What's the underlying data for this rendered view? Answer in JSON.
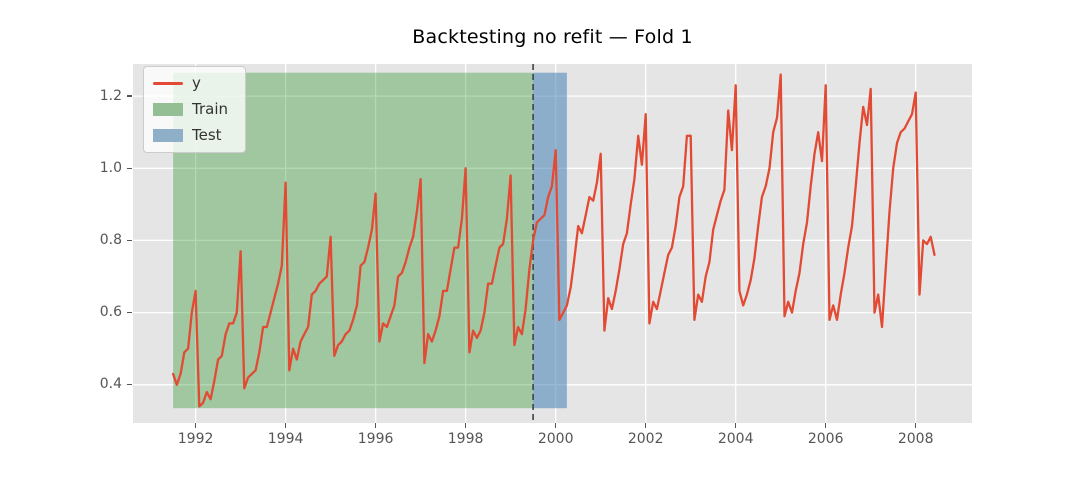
{
  "title": "Backtesting no refit — Fold 1",
  "legend": {
    "items": [
      {
        "label": "y",
        "type": "line",
        "color": "#E24A33"
      },
      {
        "label": "Train",
        "type": "patch",
        "color": "#94be94"
      },
      {
        "label": "Test",
        "type": "patch",
        "color": "#8fafc9"
      }
    ]
  },
  "chart_data": {
    "type": "line",
    "title": "Backtesting no refit — Fold 1",
    "xlabel": "",
    "ylabel": "",
    "x_unit": "year",
    "x_frequency": "monthly",
    "xlim": [
      1990.61,
      2009.25
    ],
    "ylim": [
      0.294,
      1.289
    ],
    "x_ticks": [
      1992,
      1994,
      1996,
      1998,
      2000,
      2002,
      2004,
      2006,
      2008
    ],
    "y_ticks": [
      0.4,
      0.6,
      0.8,
      1.0,
      1.2
    ],
    "grid": true,
    "plot_bg": "#e5e5e5",
    "grid_color": "#ffffff",
    "legend_position": "upper-left",
    "boundary_x": 1999.5,
    "boundary_color": "#3d434d",
    "regions": [
      {
        "label": "Train",
        "x0": 1991.5,
        "x1": 1999.5,
        "y0": 0.335,
        "y1": 1.265,
        "color": "rgba(0,128,0,0.30)"
      },
      {
        "label": "Test",
        "x0": 1999.5,
        "x1": 2000.25,
        "y0": 0.335,
        "y1": 1.265,
        "color": "rgba(70,130,180,0.55)"
      }
    ],
    "series": [
      {
        "name": "y",
        "color": "#E24A33",
        "x_start": 1991.5,
        "x_step": 0.0833333,
        "values": [
          0.43,
          0.4,
          0.43,
          0.49,
          0.5,
          0.6,
          0.66,
          0.34,
          0.35,
          0.38,
          0.36,
          0.41,
          0.47,
          0.48,
          0.54,
          0.57,
          0.57,
          0.6,
          0.77,
          0.39,
          0.42,
          0.43,
          0.44,
          0.49,
          0.56,
          0.56,
          0.6,
          0.64,
          0.68,
          0.73,
          0.96,
          0.44,
          0.5,
          0.47,
          0.52,
          0.54,
          0.56,
          0.65,
          0.66,
          0.68,
          0.69,
          0.7,
          0.81,
          0.48,
          0.51,
          0.52,
          0.54,
          0.55,
          0.58,
          0.62,
          0.73,
          0.74,
          0.78,
          0.83,
          0.93,
          0.52,
          0.57,
          0.56,
          0.59,
          0.62,
          0.7,
          0.71,
          0.74,
          0.78,
          0.81,
          0.88,
          0.97,
          0.46,
          0.54,
          0.52,
          0.55,
          0.59,
          0.66,
          0.66,
          0.72,
          0.78,
          0.78,
          0.86,
          1.0,
          0.49,
          0.55,
          0.53,
          0.55,
          0.6,
          0.68,
          0.68,
          0.73,
          0.78,
          0.79,
          0.86,
          0.98,
          0.51,
          0.56,
          0.54,
          0.61,
          0.72,
          0.8,
          0.85,
          0.86,
          0.87,
          0.92,
          0.95,
          1.05,
          0.58,
          0.6,
          0.62,
          0.67,
          0.75,
          0.84,
          0.82,
          0.87,
          0.92,
          0.91,
          0.96,
          1.04,
          0.55,
          0.64,
          0.61,
          0.66,
          0.72,
          0.79,
          0.82,
          0.9,
          0.97,
          1.09,
          1.01,
          1.15,
          0.57,
          0.63,
          0.61,
          0.66,
          0.71,
          0.76,
          0.78,
          0.84,
          0.92,
          0.95,
          1.09,
          1.09,
          0.58,
          0.65,
          0.63,
          0.7,
          0.74,
          0.83,
          0.87,
          0.91,
          0.94,
          1.16,
          1.05,
          1.23,
          0.66,
          0.62,
          0.65,
          0.69,
          0.75,
          0.84,
          0.92,
          0.95,
          1.0,
          1.1,
          1.14,
          1.26,
          0.59,
          0.63,
          0.6,
          0.66,
          0.71,
          0.79,
          0.85,
          0.95,
          1.04,
          1.1,
          1.02,
          1.23,
          0.58,
          0.62,
          0.58,
          0.65,
          0.71,
          0.78,
          0.84,
          0.95,
          1.07,
          1.17,
          1.12,
          1.22,
          0.6,
          0.65,
          0.56,
          0.72,
          0.88,
          1.0,
          1.07,
          1.1,
          1.11,
          1.13,
          1.15,
          1.21,
          0.65,
          0.8,
          0.79,
          0.81,
          0.76
        ]
      }
    ]
  }
}
